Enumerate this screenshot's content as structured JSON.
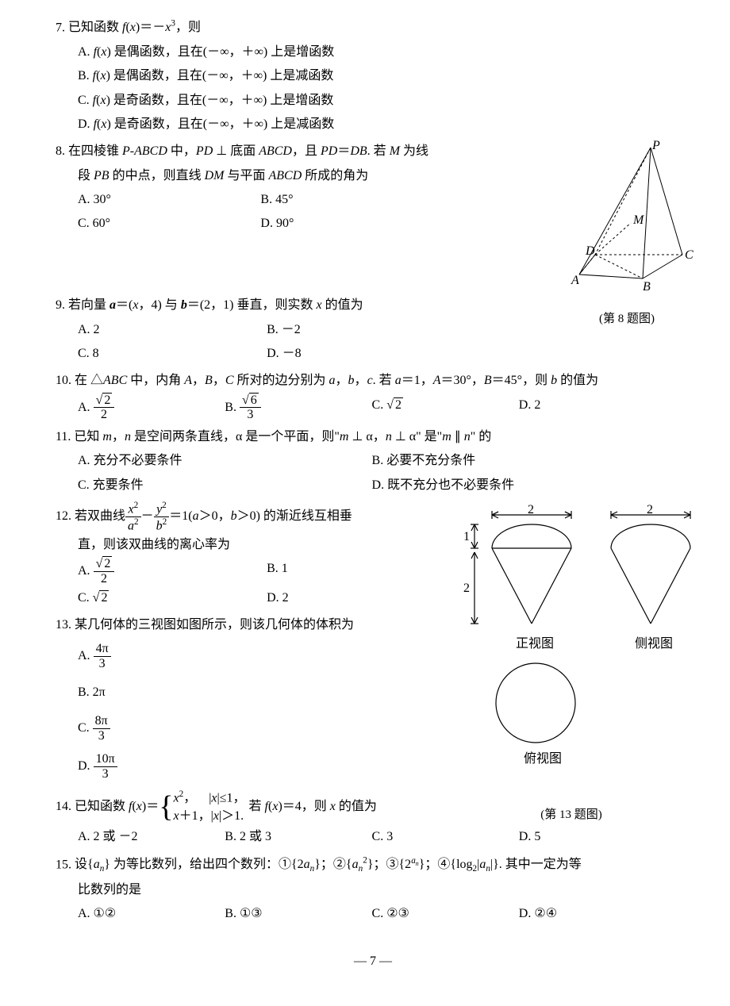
{
  "q7": {
    "num": "7.",
    "stem": "已知函数 <span class='it'>f</span>(<span class='it'>x</span>)＝－<span class='it'>x</span><sup>3</sup>，则",
    "a": "A. <span class='it'>f</span>(<span class='it'>x</span>) 是偶函数，且在(－∞，＋∞) 上是增函数",
    "b": "B. <span class='it'>f</span>(<span class='it'>x</span>) 是偶函数，且在(－∞，＋∞) 上是减函数",
    "c": "C. <span class='it'>f</span>(<span class='it'>x</span>) 是奇函数，且在(－∞，＋∞) 上是增函数",
    "d": "D. <span class='it'>f</span>(<span class='it'>x</span>) 是奇函数，且在(－∞，＋∞) 上是减函数"
  },
  "q8": {
    "num": "8.",
    "stem": "在四棱锥 <span class='it'>P</span>-<span class='it'>ABCD</span> 中，<span class='it'>PD</span> ⊥ 底面 <span class='it'>ABCD</span>，且 <span class='it'>PD</span>＝<span class='it'>DB</span>. 若 <span class='it'>M</span> 为线",
    "stem2": "段 <span class='it'>PB</span> 的中点，则直线 <span class='it'>DM</span> 与平面 <span class='it'>ABCD</span> 所成的角为",
    "a": "A. 30°",
    "b": "B. 45°",
    "c": "C. 60°",
    "d": "D. 90°",
    "caption": "(第 8 题图)",
    "labels": {
      "P": "P",
      "A": "A",
      "B": "B",
      "C": "C",
      "D": "D",
      "M": "M"
    }
  },
  "q9": {
    "num": "9.",
    "stem": "若向量 <span class='bold it'>a</span>＝(<span class='it'>x</span>，4) 与 <span class='bold it'>b</span>＝(2，1) 垂直，则实数 <span class='it'>x</span> 的值为",
    "a": "A. 2",
    "b": "B. －2",
    "c": "C. 8",
    "d": "D. －8"
  },
  "q10": {
    "num": "10.",
    "stem": "在 △<span class='it'>ABC</span> 中，内角 <span class='it'>A</span>，<span class='it'>B</span>，<span class='it'>C</span> 所对的边分别为 <span class='it'>a</span>，<span class='it'>b</span>，<span class='it'>c</span>. 若 <span class='it'>a</span>＝1，<span class='it'>A</span>＝30°，<span class='it'>B</span>＝45°，则 <span class='it'>b</span> 的值为",
    "a": "A. <span class='frac'><span class='num'><span class='sqrt'><span class='rad'>2</span></span></span><span class='den'>2</span></span>",
    "b": "B. <span class='frac'><span class='num'><span class='sqrt'><span class='rad'>6</span></span></span><span class='den'>3</span></span>",
    "c": "C. <span class='sqrt'><span class='rad'>2</span></span>",
    "d": "D. 2"
  },
  "q11": {
    "num": "11.",
    "stem": "已知 <span class='it'>m</span>，<span class='it'>n</span> 是空间两条直线，α 是一个平面，则\"<span class='it'>m</span> ⊥ α，<span class='it'>n</span> ⊥ α\" 是\"<span class='it'>m</span> ∥ <span class='it'>n</span>\" 的",
    "a": "A. 充分不必要条件",
    "b": "B. 必要不充分条件",
    "c": "C. 充要条件",
    "d": "D. 既不充分也不必要条件"
  },
  "q12": {
    "num": "12.",
    "stem": "若双曲线<span class='frac'><span class='num'><span class='it'>x</span><sup>2</sup></span><span class='den'><span class='it'>a</span><sup>2</sup></span></span>－<span class='frac'><span class='num'><span class='it'>y</span><sup>2</sup></span><span class='den'><span class='it'>b</span><sup>2</sup></span></span>＝1(<span class='it'>a</span>＞0，<span class='it'>b</span>＞0) 的渐近线互相垂",
    "stem2": "直，则该双曲线的离心率为",
    "a": "A. <span class='frac'><span class='num'><span class='sqrt'><span class='rad'>2</span></span></span><span class='den'>2</span></span>",
    "b": "B. 1",
    "c": "C. <span class='sqrt'><span class='rad'>2</span></span>",
    "d": "D. 2"
  },
  "q13": {
    "num": "13.",
    "stem": "某几何体的三视图如图所示，则该几何体的体积为",
    "a": "A. <span class='frac'><span class='num'>4π</span><span class='den'>3</span></span>",
    "b": "B. 2π",
    "c": "C. <span class='frac'><span class='num'>8π</span><span class='den'>3</span></span>",
    "d": "D. <span class='frac'><span class='num'>10π</span><span class='den'>3</span></span>",
    "labels": {
      "front": "正视图",
      "side": "侧视图",
      "top": "俯视图",
      "two": "2",
      "one": "1"
    },
    "caption": "(第 13 题图)"
  },
  "q14": {
    "num": "14.",
    "stem_pre": "已知函数 <span class='it'>f</span>(<span class='it'>x</span>)＝",
    "case1": "<span class='it'>x</span><sup>2</sup>，&nbsp;&nbsp;&nbsp;&nbsp;|<span class='it'>x</span>|≤1，",
    "case2": "<span class='it'>x</span>＋1，|<span class='it'>x</span>|＞1.",
    "stem_post": "若 <span class='it'>f</span>(<span class='it'>x</span>)＝4，则 <span class='it'>x</span> 的值为",
    "a": "A. 2 或 －2",
    "b": "B. 2 或 3",
    "c": "C. 3",
    "d": "D. 5"
  },
  "q15": {
    "num": "15.",
    "stem": "设{<span class='it'>a<sub>n</sub></span>} 为等比数列，给出四个数列：①{2<span class='it'>a<sub>n</sub></span>}；②{<span class='it'>a</span><sub><span class='it'>n</span></sub><sup>2</sup>}；③{2<sup><span class='it'>a<sub>n</sub></span></sup>}；④{log<sub>2</sub>|<span class='it'>a<sub>n</sub></span>|}. 其中一定为等",
    "stem2": "比数列的是",
    "a": "A. ①②",
    "b": "B. ①③",
    "c": "C. ②③",
    "d": "D. ②④"
  },
  "pagenum": "— 7 —"
}
